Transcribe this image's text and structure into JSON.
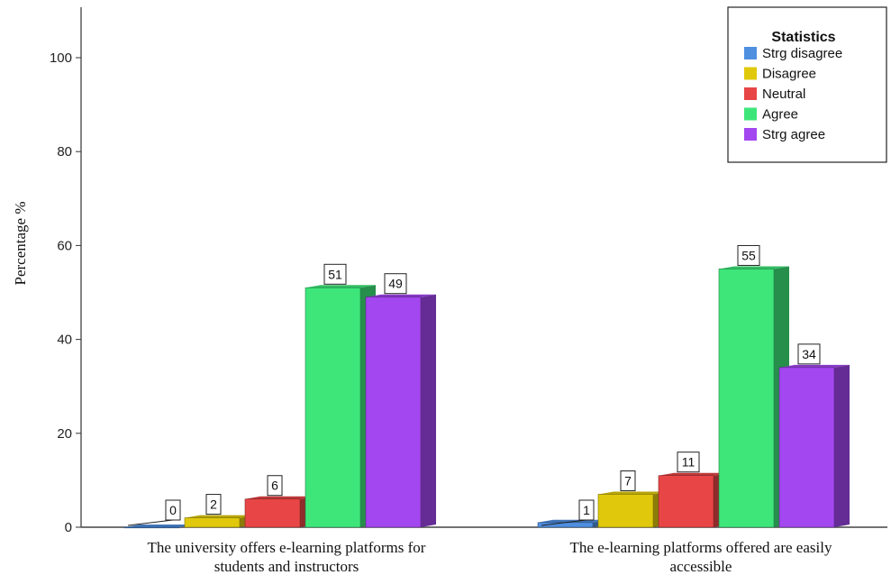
{
  "chart_data": {
    "type": "bar",
    "title": "",
    "ylabel": "Percentage %",
    "xlabel": "",
    "ylim": [
      0,
      110
    ],
    "yticks": [
      0,
      20,
      40,
      60,
      80,
      100
    ],
    "categories": [
      [
        "The university offers e-learning platforms for",
        "students and instructors"
      ],
      [
        "The e-learning platforms offered are easily",
        "accessible"
      ]
    ],
    "legend": {
      "title": "Statistics",
      "position": "top-right"
    },
    "series": [
      {
        "name": "Strg disagree",
        "color": "#4f8fe0",
        "values": [
          0,
          1
        ]
      },
      {
        "name": "Disagree",
        "color": "#e0c90c",
        "values": [
          2,
          7
        ]
      },
      {
        "name": "Neutral",
        "color": "#e84646",
        "values": [
          6,
          11
        ]
      },
      {
        "name": "Agree",
        "color": "#3ee67a",
        "values": [
          51,
          55
        ]
      },
      {
        "name": "Strg agree",
        "color": "#a347f0",
        "values": [
          49,
          34
        ]
      }
    ],
    "data_labels": [
      [
        "0",
        "2",
        "6",
        "51",
        "49"
      ],
      [
        "1",
        "7",
        "11",
        "55",
        "34"
      ]
    ],
    "grid": false,
    "bar_style": "3d"
  }
}
